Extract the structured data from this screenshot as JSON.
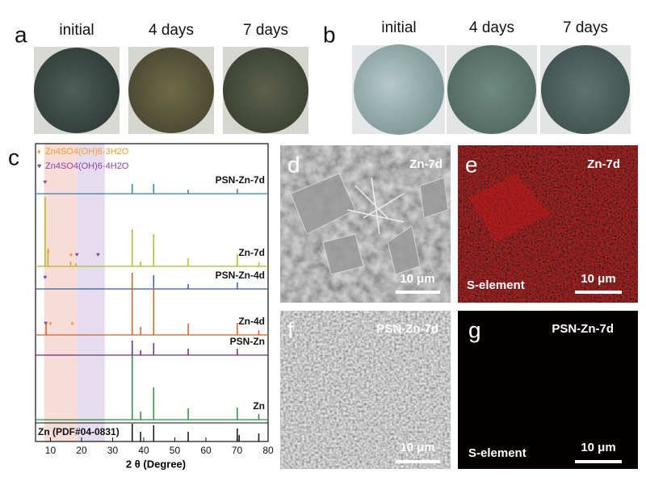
{
  "panel_a": {
    "label": "a",
    "captions": [
      "initial",
      "4 days",
      "7 days"
    ]
  },
  "panel_b": {
    "label": "b",
    "captions": [
      "initial",
      "4 days",
      "7 days"
    ]
  },
  "chart_data": {
    "type": "line",
    "label": "c",
    "x_label": "2 θ (Degree)",
    "xlim": [
      5.2,
      80
    ],
    "xticks": [
      10,
      20,
      30,
      40,
      50,
      60,
      70,
      80
    ],
    "legend": [
      {
        "name": "Zn4SO4(OH)6·3H2O",
        "color": "#f39a2b"
      },
      {
        "name": "Zn4SO4(OH)6·4H2O",
        "color": "#8e3fa8"
      }
    ],
    "bands": [
      {
        "from": 8,
        "to": 18.5,
        "color": "#f8dcd8"
      },
      {
        "from": 18.5,
        "to": 27.5,
        "color": "#e6dcef"
      }
    ],
    "series": [
      {
        "name": "PSN-Zn-7d",
        "color": "#3c7fa8",
        "x": [
          36.3,
          43.2,
          54.3,
          70.1
        ],
        "values": [
          12,
          12,
          5,
          6
        ],
        "markers": [
          {
            "x": 8.3,
            "phase": 1
          }
        ]
      },
      {
        "name": "Zn-7d",
        "color": "#b7b52a",
        "x": [
          8.3,
          9.2,
          16.5,
          18.2,
          36.3,
          39,
          43.2,
          54.3,
          70.1,
          77
        ],
        "values": [
          86,
          22,
          6,
          4,
          46,
          6,
          40,
          10,
          15,
          5
        ],
        "markers": [
          {
            "x": 9.3,
            "phase": 0
          },
          {
            "x": 16.6,
            "phase": 0
          },
          {
            "x": 18.5,
            "phase": 1
          },
          {
            "x": 25.3,
            "phase": 1
          }
        ]
      },
      {
        "name": "PSN-Zn-4d",
        "color": "#2c5fa0",
        "x": [
          36.3,
          43.2,
          54.3,
          70.1
        ],
        "values": [
          20,
          17,
          6,
          8
        ],
        "markers": [
          {
            "x": 8.3,
            "phase": 1
          }
        ]
      },
      {
        "name": "Zn-4d",
        "color": "#d2602a",
        "x": [
          8.6,
          36.3,
          39,
          43.2,
          54.3,
          70.1,
          77
        ],
        "values": [
          14,
          76,
          10,
          60,
          14,
          15,
          6
        ],
        "markers": [
          {
            "x": 8.5,
            "phase": 1
          },
          {
            "x": 10,
            "phase": 0
          },
          {
            "x": 17,
            "phase": 0
          }
        ]
      },
      {
        "name": "PSN-Zn",
        "color": "#6a2c82",
        "x": [
          36.3,
          39,
          43.2,
          54.3,
          70.1
        ],
        "values": [
          18,
          6,
          15,
          8,
          8
        ],
        "markers": []
      },
      {
        "name": "Zn",
        "color": "#2e8b3e",
        "x": [
          36.3,
          39,
          43.2,
          54.3,
          70.1,
          77
        ],
        "values": [
          80,
          10,
          40,
          14,
          15,
          7
        ],
        "markers": []
      }
    ],
    "reference": {
      "name": "Zn (PDF#04-0831)",
      "x": [
        36.3,
        39,
        43.2,
        54.3,
        70.1,
        70.7,
        77
      ],
      "values": [
        22,
        12,
        20,
        12,
        16,
        8,
        10
      ]
    }
  },
  "images": [
    {
      "label": "d",
      "title": "Zn-7d",
      "scale_bar": "10 μm"
    },
    {
      "label": "e",
      "title": "Zn-7d",
      "element": "S-element",
      "scale_bar": "10 μm"
    },
    {
      "label": "f",
      "title": "PSN-Zn-7d",
      "scale_bar": "10 μm"
    },
    {
      "label": "g",
      "title": "PSN-Zn-7d",
      "element": "S-element",
      "scale_bar": "10 μm"
    }
  ]
}
